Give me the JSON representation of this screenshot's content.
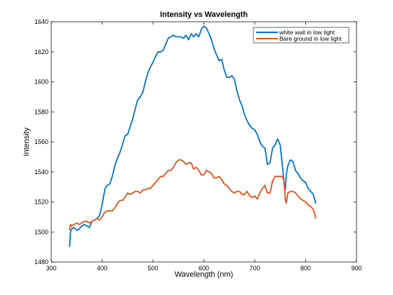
{
  "chart_data": {
    "type": "line",
    "title": "Intensity vs Wavelength",
    "xlabel": "Wavelength (nm)",
    "ylabel": "Intensity",
    "xlim": [
      300,
      900
    ],
    "ylim": [
      1480,
      1640
    ],
    "xticks": [
      300,
      400,
      500,
      600,
      700,
      800,
      900
    ],
    "yticks": [
      1480,
      1500,
      1520,
      1540,
      1560,
      1580,
      1600,
      1620,
      1640
    ],
    "grid": false,
    "legend_position": "top-right",
    "series": [
      {
        "name": "white wall in low light",
        "color": "#0072bd",
        "x": [
          336,
          338,
          340,
          345,
          350,
          355,
          360,
          365,
          370,
          375,
          380,
          385,
          390,
          395,
          400,
          403,
          406,
          410,
          415,
          420,
          425,
          430,
          435,
          440,
          445,
          450,
          455,
          460,
          465,
          470,
          475,
          480,
          485,
          490,
          495,
          500,
          505,
          510,
          515,
          520,
          525,
          530,
          535,
          540,
          545,
          550,
          555,
          560,
          565,
          570,
          575,
          580,
          585,
          590,
          595,
          600,
          605,
          610,
          615,
          620,
          625,
          630,
          635,
          640,
          645,
          650,
          655,
          660,
          665,
          670,
          675,
          680,
          685,
          690,
          695,
          700,
          705,
          710,
          715,
          720,
          725,
          730,
          735,
          740,
          745,
          750,
          755,
          758,
          760,
          762,
          765,
          770,
          775,
          780,
          785,
          790,
          795,
          800,
          805,
          810,
          815,
          820
        ],
        "y": [
          1490,
          1500,
          1502,
          1503,
          1501,
          1502,
          1504,
          1505,
          1504,
          1503,
          1507,
          1508,
          1509,
          1511,
          1518,
          1524,
          1529,
          1531,
          1532,
          1537,
          1544,
          1549,
          1553,
          1558,
          1564,
          1565,
          1570,
          1575,
          1582,
          1588,
          1590,
          1593,
          1600,
          1606,
          1610,
          1613,
          1617,
          1620,
          1620,
          1621,
          1625,
          1629,
          1630,
          1631,
          1630,
          1630,
          1630,
          1629,
          1631,
          1628,
          1632,
          1630,
          1632,
          1630,
          1635,
          1637,
          1636,
          1632,
          1628,
          1622,
          1618,
          1614,
          1615,
          1608,
          1603,
          1603,
          1604,
          1602,
          1594,
          1588,
          1584,
          1578,
          1574,
          1571,
          1569,
          1568,
          1565,
          1560,
          1557,
          1556,
          1545,
          1546,
          1556,
          1558,
          1562,
          1558,
          1542,
          1531,
          1528,
          1538,
          1544,
          1548,
          1547,
          1541,
          1539,
          1536,
          1534,
          1533,
          1529,
          1527,
          1525,
          1519
        ]
      },
      {
        "name": "Bare ground in low light",
        "color": "#d95319",
        "x": [
          336,
          338,
          340,
          345,
          350,
          355,
          360,
          365,
          370,
          375,
          380,
          385,
          390,
          395,
          400,
          405,
          410,
          415,
          420,
          425,
          430,
          435,
          440,
          445,
          450,
          455,
          460,
          465,
          470,
          475,
          480,
          485,
          490,
          495,
          500,
          505,
          510,
          515,
          520,
          525,
          530,
          535,
          540,
          545,
          550,
          555,
          560,
          565,
          570,
          575,
          580,
          585,
          590,
          595,
          600,
          605,
          610,
          615,
          620,
          625,
          630,
          635,
          640,
          645,
          650,
          655,
          660,
          665,
          670,
          675,
          680,
          685,
          690,
          695,
          700,
          705,
          710,
          715,
          720,
          725,
          730,
          735,
          740,
          745,
          750,
          755,
          758,
          760,
          762,
          765,
          770,
          775,
          780,
          785,
          790,
          795,
          800,
          805,
          810,
          815,
          818,
          820
        ],
        "y": [
          1501,
          1505,
          1504,
          1505,
          1506,
          1505,
          1506,
          1507,
          1507,
          1506,
          1507,
          1508,
          1509,
          1508,
          1510,
          1513,
          1514,
          1514,
          1514,
          1516,
          1519,
          1521,
          1521,
          1523,
          1526,
          1525,
          1526,
          1527,
          1527,
          1526,
          1528,
          1528,
          1529,
          1529,
          1531,
          1533,
          1535,
          1537,
          1537,
          1539,
          1541,
          1541,
          1543,
          1546,
          1548,
          1548,
          1547,
          1545,
          1546,
          1546,
          1542,
          1543,
          1541,
          1538,
          1538,
          1541,
          1540,
          1539,
          1536,
          1536,
          1537,
          1535,
          1532,
          1531,
          1529,
          1527,
          1526,
          1527,
          1527,
          1525,
          1525,
          1527,
          1524,
          1523,
          1524,
          1522,
          1526,
          1529,
          1531,
          1526,
          1526,
          1534,
          1537,
          1537,
          1537,
          1537,
          1532,
          1522,
          1519,
          1526,
          1527,
          1527,
          1526,
          1524,
          1522,
          1521,
          1520,
          1518,
          1517,
          1515,
          1512,
          1509
        ]
      }
    ]
  }
}
